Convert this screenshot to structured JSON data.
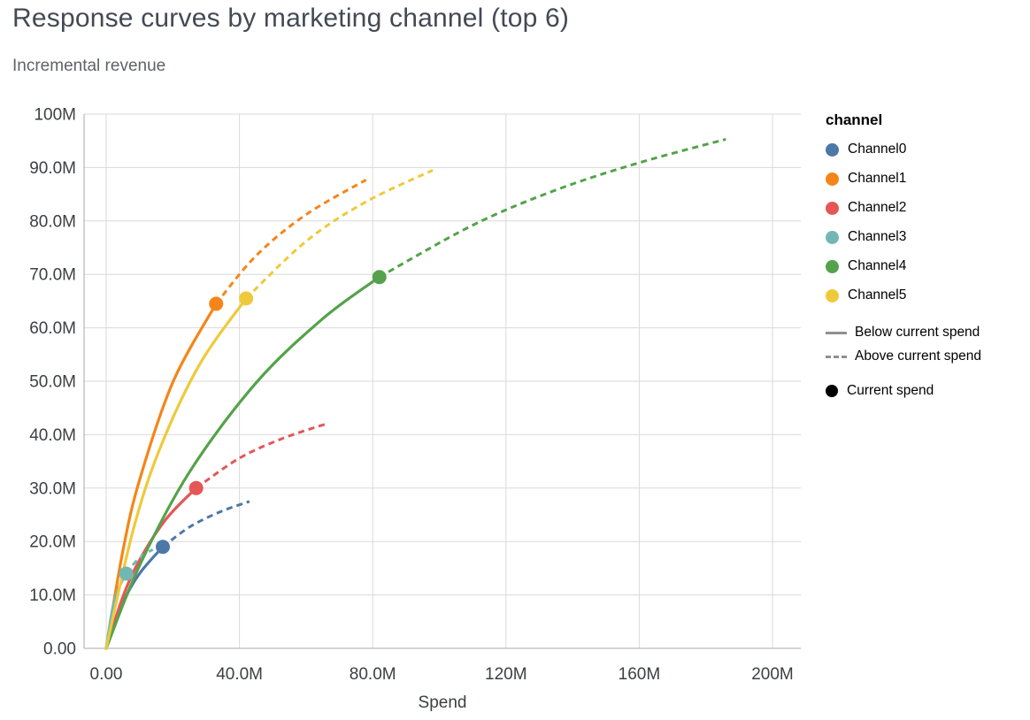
{
  "chart_data": {
    "type": "line",
    "title": "Response curves by marketing channel (top 6)",
    "subtitle": "Incremental revenue",
    "xlabel": "Spend",
    "ylabel": "Incremental revenue",
    "units": "spend and revenue values in millions (M)",
    "xlim_m": [
      0,
      200
    ],
    "ylim_m": [
      0,
      100
    ],
    "grid": true,
    "legend_position": "right",
    "x_ticks": [
      {
        "value": 0,
        "label": "0.00"
      },
      {
        "value": 40,
        "label": "40.0M"
      },
      {
        "value": 80,
        "label": "80.0M"
      },
      {
        "value": 120,
        "label": "120M"
      },
      {
        "value": 160,
        "label": "160M"
      },
      {
        "value": 200,
        "label": "200M"
      }
    ],
    "y_ticks": [
      {
        "value": 0,
        "label": "0.00"
      },
      {
        "value": 10,
        "label": "10.0M"
      },
      {
        "value": 20,
        "label": "20.0M"
      },
      {
        "value": 30,
        "label": "30.0M"
      },
      {
        "value": 40,
        "label": "40.0M"
      },
      {
        "value": 50,
        "label": "50.0M"
      },
      {
        "value": 60,
        "label": "60.0M"
      },
      {
        "value": 70,
        "label": "70.0M"
      },
      {
        "value": 80,
        "label": "80.0M"
      },
      {
        "value": 90,
        "label": "90.0M"
      },
      {
        "value": 100,
        "label": "100M"
      }
    ],
    "encoding_notes": {
      "solid_line": "Below current spend",
      "dashed_line": "Above current spend",
      "dot_marker": "Current spend"
    },
    "series": [
      {
        "name": "Channel0",
        "color": "#4c78a8",
        "current_spend_m": 17,
        "current_revenue_m": 19.0,
        "points_m": [
          [
            0,
            0
          ],
          [
            5,
            8.5
          ],
          [
            10,
            14.0
          ],
          [
            17,
            19.0
          ],
          [
            25,
            22.7
          ],
          [
            34,
            25.5
          ],
          [
            43,
            27.5
          ]
        ]
      },
      {
        "name": "Channel1",
        "color": "#f58518",
        "current_spend_m": 33,
        "current_revenue_m": 64.5,
        "points_m": [
          [
            0,
            0
          ],
          [
            5,
            18.2
          ],
          [
            10,
            31.5
          ],
          [
            20,
            49.8
          ],
          [
            33,
            64.5
          ],
          [
            45,
            73.5
          ],
          [
            60,
            81.2
          ],
          [
            78,
            87.7
          ]
        ]
      },
      {
        "name": "Channel2",
        "color": "#e45756",
        "current_spend_m": 27,
        "current_revenue_m": 30.0,
        "points_m": [
          [
            0,
            0
          ],
          [
            5,
            9.6
          ],
          [
            10,
            16.5
          ],
          [
            18,
            24.2
          ],
          [
            27,
            30.0
          ],
          [
            40,
            35.6
          ],
          [
            53,
            39.3
          ],
          [
            66,
            42.0
          ]
        ]
      },
      {
        "name": "Channel3",
        "color": "#72b7b2",
        "current_spend_m": 6,
        "current_revenue_m": 14.0,
        "points_m": [
          [
            0,
            0
          ],
          [
            2,
            7.6
          ],
          [
            4,
            11.6
          ],
          [
            6,
            14.0
          ],
          [
            9,
            16.3
          ],
          [
            11.5,
            17.6
          ],
          [
            14,
            18.5
          ]
        ]
      },
      {
        "name": "Channel4",
        "color": "#54a24b",
        "current_spend_m": 82,
        "current_revenue_m": 69.5,
        "points_m": [
          [
            0,
            0
          ],
          [
            10,
            15.5
          ],
          [
            25,
            33.0
          ],
          [
            45,
            49.7
          ],
          [
            65,
            61.7
          ],
          [
            82,
            69.5
          ],
          [
            110,
            79.2
          ],
          [
            135,
            85.8
          ],
          [
            160,
            90.9
          ],
          [
            186,
            95.3
          ]
        ]
      },
      {
        "name": "Channel5",
        "color": "#eeca3b",
        "current_spend_m": 42,
        "current_revenue_m": 65.5,
        "points_m": [
          [
            0,
            0
          ],
          [
            8,
            21.9
          ],
          [
            16,
            37.2
          ],
          [
            28,
            53.1
          ],
          [
            42,
            65.5
          ],
          [
            60,
            76.2
          ],
          [
            78,
            83.6
          ],
          [
            98,
            89.5
          ]
        ]
      }
    ]
  },
  "legend": {
    "title": "channel",
    "symbol_color": "#8f8f8f",
    "marker_color": "#000000",
    "line_styles": [
      {
        "label": "Below current spend",
        "style": "solid"
      },
      {
        "label": "Above current spend",
        "style": "dashed"
      }
    ],
    "marker_label": "Current spend"
  }
}
